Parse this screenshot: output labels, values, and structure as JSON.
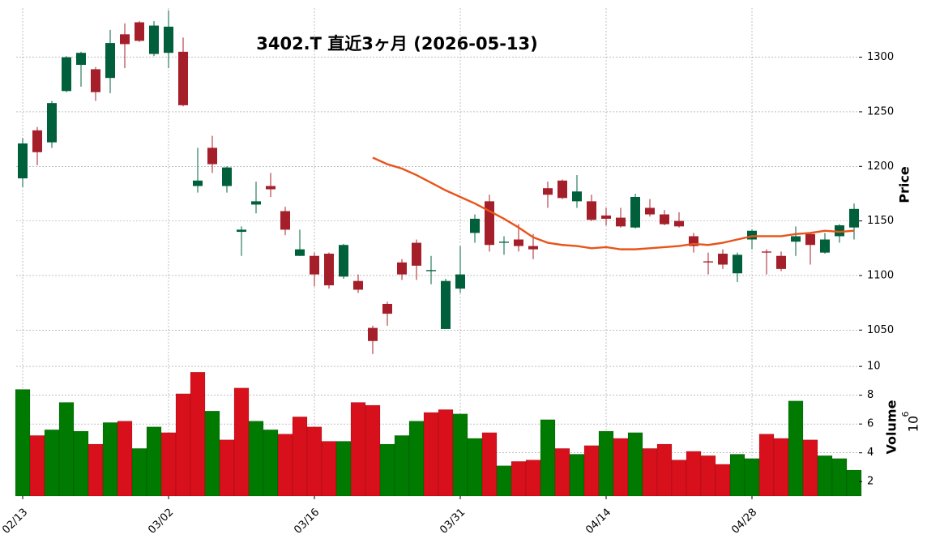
{
  "chart_data": {
    "type": "candlestick",
    "title": "3402.T  直近3ヶ月  (2026-05-13)",
    "ylabel": "Price",
    "y2label": "Volume",
    "y2label_base": "10",
    "y2label_exponent": "6",
    "categories": [
      "02/13",
      null,
      null,
      null,
      null,
      null,
      null,
      null,
      null,
      null,
      "03/02",
      null,
      null,
      null,
      null,
      null,
      null,
      null,
      null,
      null,
      "03/16",
      null,
      null,
      null,
      null,
      null,
      null,
      null,
      null,
      null,
      "03/31",
      null,
      null,
      null,
      null,
      null,
      null,
      null,
      null,
      null,
      "04/14",
      null,
      null,
      null,
      null,
      null,
      null,
      null,
      null,
      null,
      "04/28",
      null,
      null,
      null,
      null,
      null,
      null,
      null
    ],
    "open": [
      1189,
      1233,
      1222,
      1269,
      1293,
      1289,
      1281,
      1321,
      1332,
      1303,
      1304,
      1305,
      1182,
      1217,
      1182,
      1140,
      1165,
      1182,
      1159,
      1118,
      1118,
      1120,
      1099,
      1095,
      1052,
      1074,
      1112,
      1130,
      1104,
      1051,
      1088,
      1139,
      1168,
      1130,
      1133,
      1127,
      1180,
      1187,
      1168,
      1168,
      1155,
      1153,
      1144,
      1162,
      1156,
      1150,
      1136,
      1113,
      1120,
      1102,
      1133,
      1122,
      1118,
      1131,
      1138,
      1121,
      1136,
      1144
    ],
    "high": [
      1226,
      1236,
      1260,
      1301,
      1305,
      1291,
      1325,
      1331,
      1333,
      1333,
      1343,
      1318,
      1217,
      1228,
      1200,
      1145,
      1186,
      1194,
      1163,
      1142,
      1121,
      1121,
      1129,
      1101,
      1054,
      1076,
      1115,
      1133,
      1118,
      1097,
      1127,
      1156,
      1174,
      1136,
      1147,
      1138,
      1186,
      1188,
      1192,
      1174,
      1162,
      1162,
      1175,
      1170,
      1160,
      1158,
      1139,
      1121,
      1124,
      1121,
      1142,
      1124,
      1122,
      1145,
      1139,
      1139,
      1147,
      1166
    ],
    "low": [
      1181,
      1201,
      1217,
      1268,
      1273,
      1260,
      1267,
      1290,
      1314,
      1301,
      1290,
      1255,
      1176,
      1194,
      1176,
      1118,
      1157,
      1172,
      1137,
      1118,
      1090,
      1088,
      1097,
      1084,
      1028,
      1054,
      1096,
      1096,
      1092,
      1051,
      1084,
      1130,
      1122,
      1119,
      1122,
      1115,
      1162,
      1170,
      1162,
      1150,
      1146,
      1144,
      1143,
      1154,
      1146,
      1144,
      1121,
      1101,
      1106,
      1094,
      1124,
      1101,
      1104,
      1118,
      1110,
      1120,
      1130,
      1133
    ],
    "close": [
      1221,
      1213,
      1258,
      1300,
      1304,
      1268,
      1313,
      1312,
      1315,
      1329,
      1328,
      1256,
      1187,
      1202,
      1199,
      1142,
      1168,
      1179,
      1142,
      1124,
      1101,
      1091,
      1128,
      1087,
      1040,
      1065,
      1101,
      1109,
      1105,
      1095,
      1101,
      1152,
      1128,
      1131,
      1127,
      1124,
      1174,
      1171,
      1177,
      1151,
      1152,
      1145,
      1172,
      1156,
      1147,
      1145,
      1127,
      1112,
      1110,
      1119,
      1141,
      1121,
      1106,
      1136,
      1128,
      1133,
      1146,
      1161
    ],
    "moving_average": [
      null,
      null,
      null,
      null,
      null,
      null,
      null,
      null,
      null,
      null,
      null,
      null,
      null,
      null,
      null,
      null,
      null,
      null,
      null,
      null,
      null,
      null,
      null,
      null,
      1208,
      1202,
      1198,
      1192,
      1185,
      1178,
      1172,
      1166,
      1159,
      1152,
      1144,
      1135,
      1130,
      1128,
      1127,
      1125,
      1126,
      1124,
      1124,
      1125,
      1126,
      1127,
      1129,
      1128,
      1130,
      1133,
      1136,
      1136,
      1136,
      1138,
      1139,
      1141,
      1140,
      1141
    ],
    "volume": [
      8.4,
      5.2,
      5.6,
      7.5,
      5.5,
      4.6,
      6.1,
      6.2,
      4.3,
      5.8,
      5.4,
      8.1,
      9.6,
      6.9,
      4.9,
      8.5,
      6.2,
      5.6,
      5.3,
      6.5,
      5.8,
      4.8,
      4.8,
      7.5,
      7.3,
      4.6,
      5.2,
      6.2,
      6.8,
      7.0,
      6.7,
      5.0,
      5.4,
      3.1,
      3.4,
      3.5,
      6.3,
      4.3,
      3.9,
      4.5,
      5.5,
      5.0,
      5.4,
      4.3,
      4.6,
      3.5,
      4.1,
      3.8,
      3.2,
      3.9,
      3.6,
      5.3,
      5.0,
      7.6,
      4.9,
      3.8,
      3.6,
      2.8
    ],
    "up_color": "#00603c",
    "down_color": "#a51f2a",
    "volume_up_color": "#007a00",
    "volume_down_color": "#d7101b",
    "ma_color": "#e8541a",
    "ylim": [
      1022,
      1345
    ],
    "yticks": [
      1050,
      1100,
      1150,
      1200,
      1250,
      1300
    ],
    "y2lim": [
      1,
      10.4
    ],
    "y2ticks": [
      2,
      4,
      6,
      8,
      10
    ],
    "grid": true
  }
}
